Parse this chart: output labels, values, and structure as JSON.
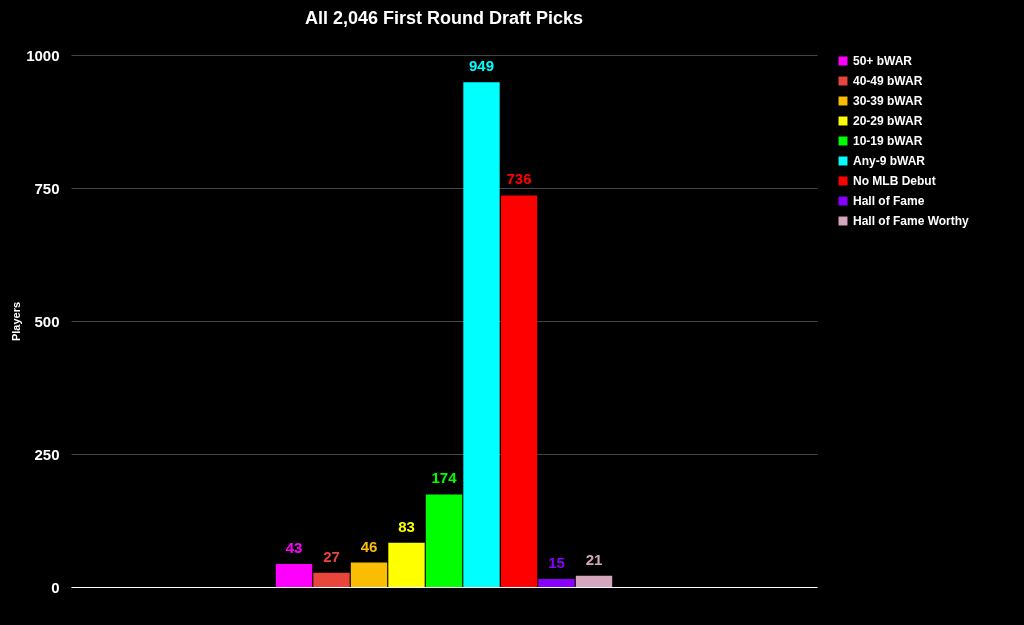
{
  "chart_data": {
    "type": "bar",
    "title": "All 2,046 First Round Draft Picks",
    "ylabel": "Players",
    "categories": [
      null
    ],
    "series": [
      {
        "name": "50+ bWAR",
        "color": "#ff00ff",
        "values": [
          43
        ]
      },
      {
        "name": "40-49 bWAR",
        "color": "#e8453c",
        "values": [
          27
        ]
      },
      {
        "name": "30-39 bWAR",
        "color": "#fbbc04",
        "values": [
          46
        ]
      },
      {
        "name": "20-29 bWAR",
        "color": "#ffff00",
        "values": [
          83
        ]
      },
      {
        "name": "10-19 bWAR",
        "color": "#00ff00",
        "values": [
          174
        ]
      },
      {
        "name": "Any-9 bWAR",
        "color": "#00ffff",
        "values": [
          949
        ]
      },
      {
        "name": "No MLB Debut",
        "color": "#ff0000",
        "values": [
          736
        ]
      },
      {
        "name": "Hall of Fame",
        "color": "#8a00ff",
        "values": [
          15
        ]
      },
      {
        "name": "Hall of Fame Worthy",
        "color": "#d5a6bd",
        "values": [
          21
        ]
      }
    ],
    "ylim": [
      0,
      1000
    ],
    "yticks": [
      0,
      250,
      500,
      750,
      1000
    ],
    "grid": "y",
    "legend": "top right",
    "data_labels": true
  }
}
